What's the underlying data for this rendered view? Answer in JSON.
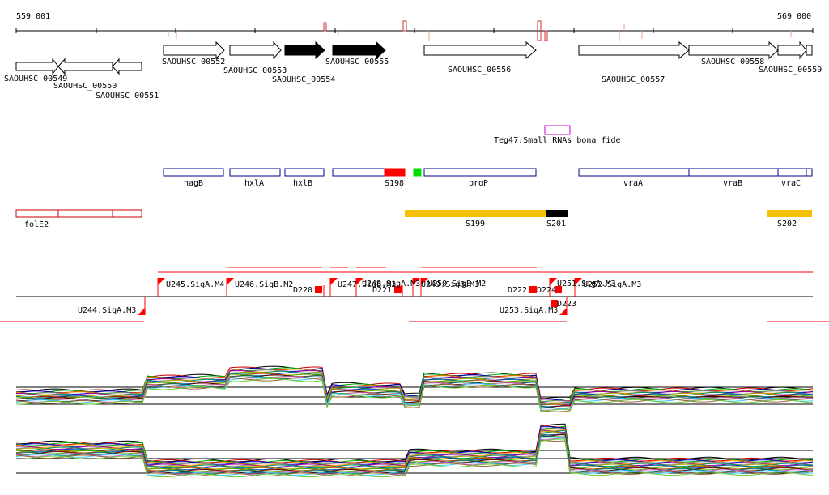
{
  "ruler": {
    "start_label": "559 001",
    "end_label": "569 000",
    "start_bp": 559001,
    "end_bp": 569000
  },
  "genes": [
    {
      "name": "SAOUHSC_00549",
      "start": 559020,
      "end": 559540,
      "strand": "+",
      "filled": false
    },
    {
      "name": "SAOUHSC_00550",
      "start": 559540,
      "end": 560190,
      "strand": "-",
      "filled": false
    },
    {
      "name": "SAOUHSC_00551",
      "start": 560190,
      "end": 560560,
      "strand": "-",
      "filled": false
    },
    {
      "name": "SAOUHSC_00552",
      "start": 560810,
      "end": 561560,
      "strand": "+",
      "filled": false
    },
    {
      "name": "SAOUHSC_00553",
      "start": 561640,
      "end": 562270,
      "strand": "+",
      "filled": false
    },
    {
      "name": "SAOUHSC_00554",
      "start": 562320,
      "end": 563010,
      "strand": "+",
      "filled": true
    },
    {
      "name": "SAOUHSC_00555",
      "start": 563100,
      "end": 563760,
      "strand": "+",
      "filled": true
    },
    {
      "name": "SAOUHSC_00556",
      "start": 564240,
      "end": 565630,
      "strand": "+",
      "filled": false
    },
    {
      "name": "SAOUHSC_00557",
      "start": 566150,
      "end": 567510,
      "strand": "+",
      "filled": false
    },
    {
      "name": "SAOUHSC_00558",
      "start": 567510,
      "end": 568600,
      "strand": "+",
      "filled": false
    },
    {
      "name": "SAOUHSC_00559",
      "start": 568600,
      "end": 568960,
      "strand": "+",
      "filled": false
    }
  ],
  "small_rna": {
    "label": "Teg47:Small RNAs bona fide",
    "color": "#cc00cc"
  },
  "operons": [
    {
      "name": "nagB"
    },
    {
      "name": "hxlA"
    },
    {
      "name": "hxlB"
    },
    {
      "name": "S198"
    },
    {
      "name": "proP"
    },
    {
      "name": "vraA"
    },
    {
      "name": "vraB"
    },
    {
      "name": "vraC"
    }
  ],
  "red_track": [
    {
      "name": "folE2"
    },
    {
      "name": "S199"
    },
    {
      "name": "S201"
    },
    {
      "name": "S202"
    }
  ],
  "tss": [
    {
      "name": "U245.SigA.M4"
    },
    {
      "name": "U246.SigB.M2"
    },
    {
      "name": "D220"
    },
    {
      "name": "U247.SigB.M3"
    },
    {
      "name": "U248.SigA.M3"
    },
    {
      "name": "D221"
    },
    {
      "name": "U249.SigB.M3"
    },
    {
      "name": "U250.SigB.M2"
    },
    {
      "name": "D222"
    },
    {
      "name": "D224"
    },
    {
      "name": "U251.SigA.M3"
    },
    {
      "name": "U252.SigA.M3"
    },
    {
      "name": "U244.SigA.M3"
    },
    {
      "name": "U253.SigA.M3"
    },
    {
      "name": "D223"
    }
  ],
  "colors": {
    "gene": "#000000",
    "operon": "#00008b",
    "rna_red": "#cc0000",
    "orange": "#f5c000",
    "green": "#00dd00",
    "tss_red": "#ff0000"
  }
}
